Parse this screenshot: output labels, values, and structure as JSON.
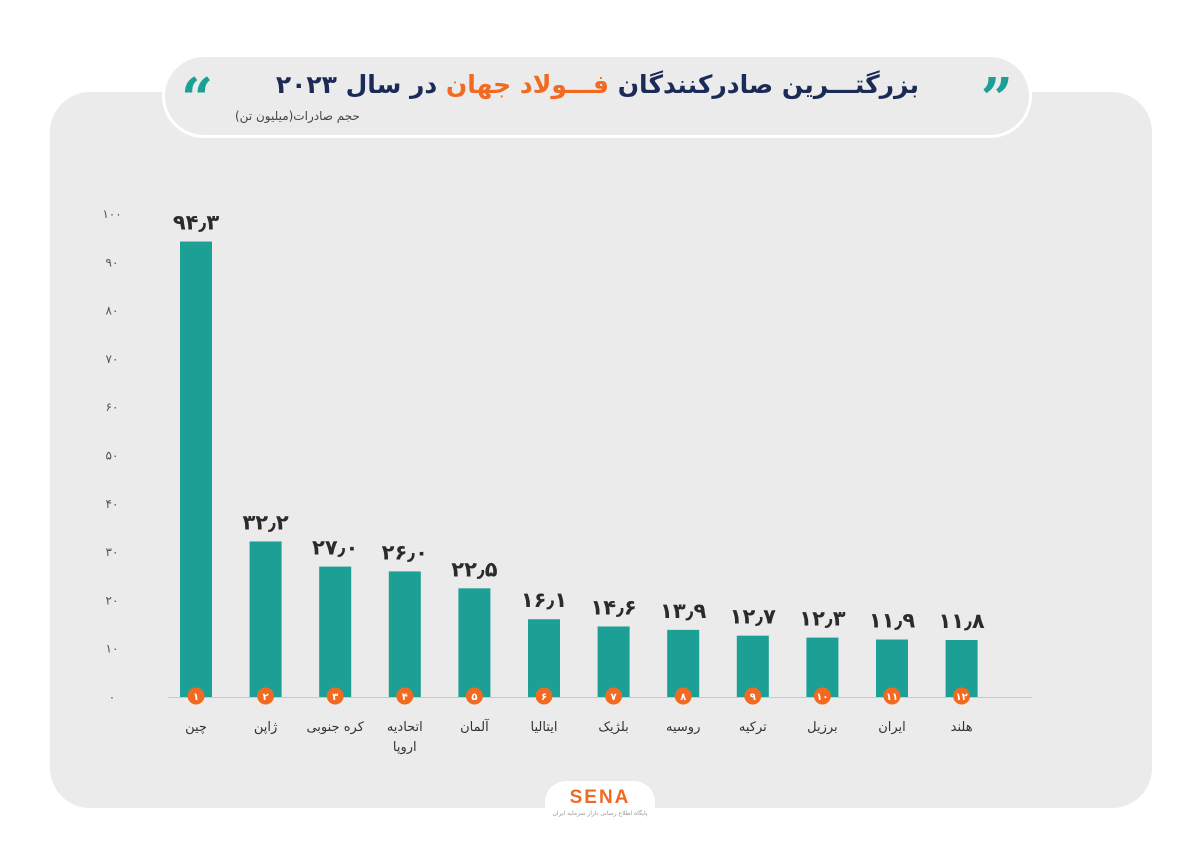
{
  "header": {
    "title_part1": "بزرگتـــرین صادرکنندگان",
    "title_highlight": "فـــولاد جهان",
    "title_part2": "در سال ۲۰۲۳",
    "subtitle": "حجم صادرات(میلیون تن)",
    "quote_left": "“",
    "quote_right": "”"
  },
  "colors": {
    "bar": "#1c9f94",
    "badge": "#f26a21",
    "title": "#1c2a57",
    "highlight": "#f26a21"
  },
  "chart_data": {
    "type": "bar",
    "categories": [
      "چین",
      "ژاپن",
      "کره جنوبی",
      "اتحادیه اروپا",
      "آلمان",
      "ایتالیا",
      "بلژیک",
      "روسیه",
      "ترکیه",
      "برزیل",
      "ایران",
      "هلند"
    ],
    "category_lines": [
      [
        "چین"
      ],
      [
        "ژاپن"
      ],
      [
        "کره جنوبی"
      ],
      [
        "اتحادیه",
        "اروپا"
      ],
      [
        "آلمان"
      ],
      [
        "ایتالیا"
      ],
      [
        "بلژیک"
      ],
      [
        "روسیه"
      ],
      [
        "ترکیه"
      ],
      [
        "برزیل"
      ],
      [
        "ایران"
      ],
      [
        "هلند"
      ]
    ],
    "values": [
      94.3,
      32.2,
      27.0,
      26.0,
      22.5,
      16.1,
      14.6,
      13.9,
      12.7,
      12.3,
      11.9,
      11.8
    ],
    "value_labels": [
      "۹۴٫۳",
      "۳۲٫۲",
      "۲۷٫۰",
      "۲۶٫۰",
      "۲۲٫۵",
      "۱۶٫۱",
      "۱۴٫۶",
      "۱۳٫۹",
      "۱۲٫۷",
      "۱۲٫۳",
      "۱۱٫۹",
      "۱۱٫۸"
    ],
    "ranks": [
      "۱",
      "۲",
      "۳",
      "۴",
      "۵",
      "۶",
      "۷",
      "۸",
      "۹",
      "۱۰",
      "۱۱",
      "۱۲"
    ],
    "y_ticks": [
      0,
      10,
      20,
      30,
      40,
      50,
      60,
      70,
      80,
      90,
      100
    ],
    "y_tick_labels": [
      "۰",
      "۱۰",
      "۲۰",
      "۳۰",
      "۴۰",
      "۵۰",
      "۶۰",
      "۷۰",
      "۸۰",
      "۹۰",
      "۱۰۰"
    ],
    "ylim": [
      0,
      100
    ],
    "ylabel": "حجم صادرات(میلیون تن)",
    "xlabel": "",
    "grid": false,
    "legend": "none"
  },
  "logo": {
    "word": "SENA",
    "tagline": "پایگاه اطلاع رسانی بازار سرمایه ایران"
  }
}
